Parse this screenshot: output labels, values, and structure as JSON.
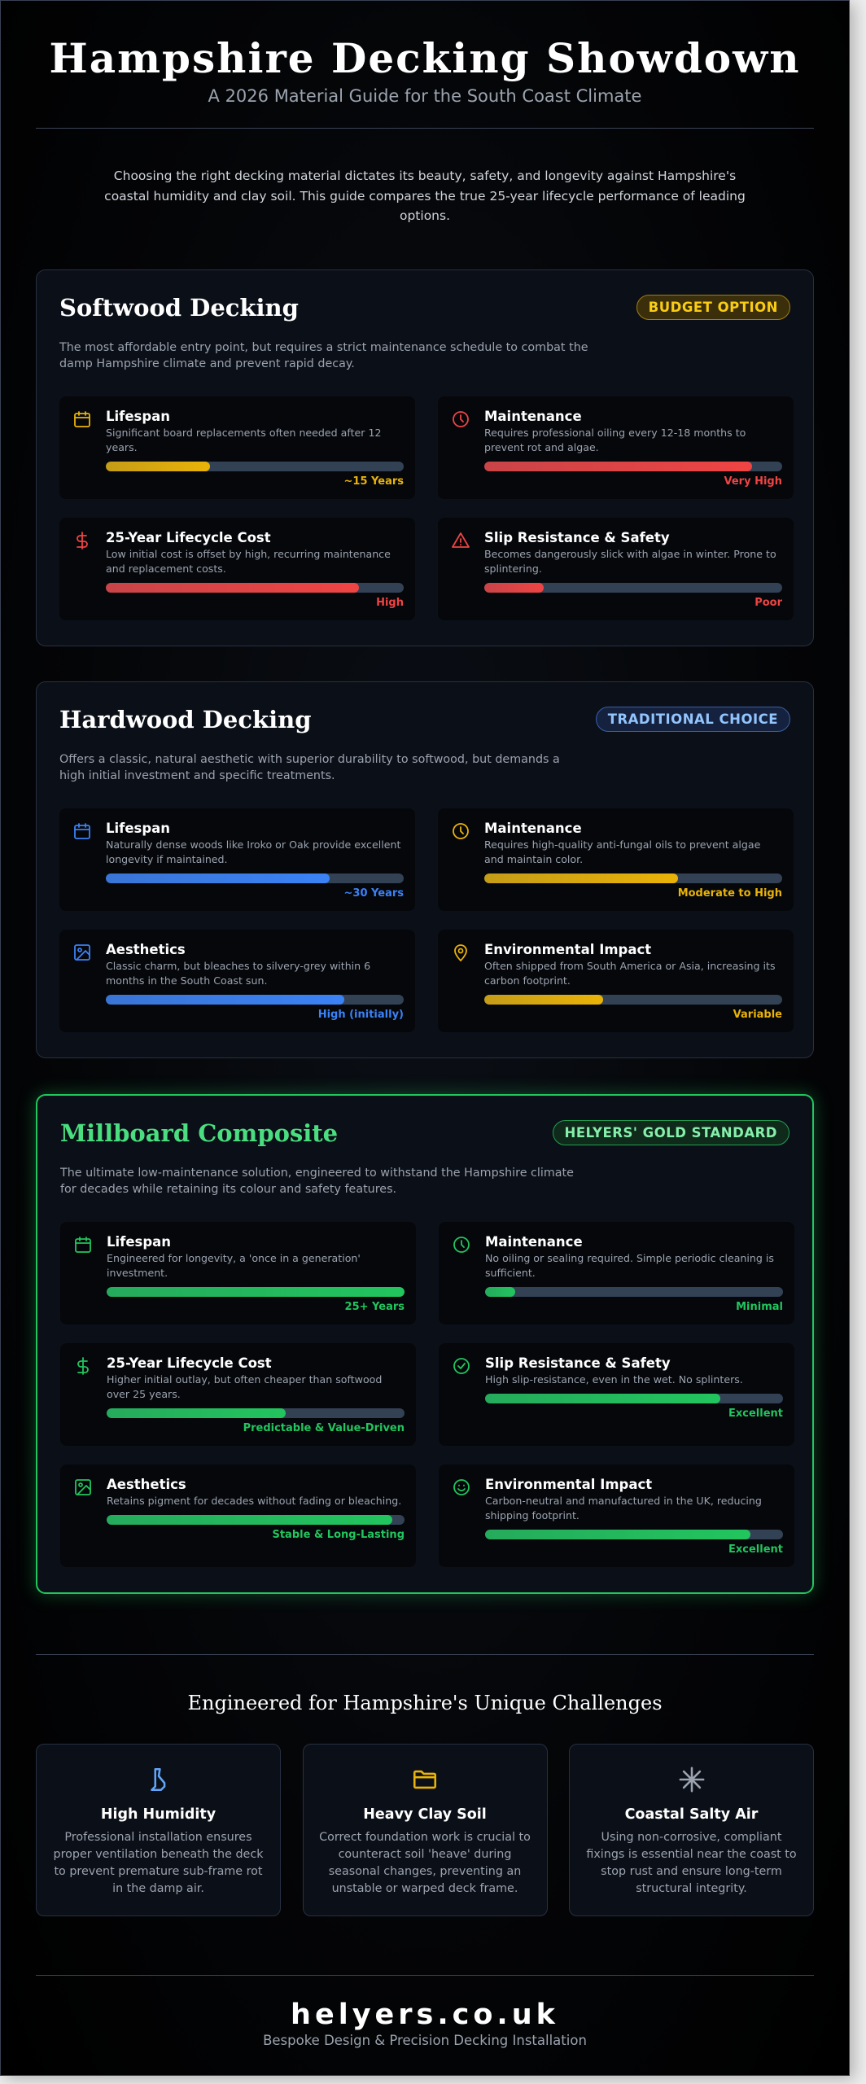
{
  "header": {
    "title": "Hampshire Decking Showdown",
    "subtitle": "A 2026 Material Guide for the South Coast Climate"
  },
  "intro": "Choosing the right decking material dictates its beauty, safety, and longevity against Hampshire's coastal humidity and clay soil. This guide compares the true 25-year lifecycle performance of leading options.",
  "cards": [
    {
      "title": "Softwood Decking",
      "badge": "BUDGET OPTION",
      "description": "The most affordable entry point, but requires a strict maintenance schedule to combat the damp Hampshire climate and prevent rapid decay.",
      "metrics": [
        {
          "title": "Lifespan",
          "description": "Significant board replacements often needed after 12 years.",
          "level": 35,
          "rating": "~15 Years",
          "color": "#eab308"
        },
        {
          "title": "Maintenance",
          "description": "Requires professional oiling every 12-18 months to prevent rot and algae.",
          "level": 90,
          "rating": "Very High",
          "color": "#ef4444"
        },
        {
          "title": "25-Year Lifecycle Cost",
          "description": "Low initial cost is offset by high, recurring maintenance and replacement costs.",
          "level": 85,
          "rating": "High",
          "color": "#ef4444"
        },
        {
          "title": "Slip Resistance & Safety",
          "description": "Becomes dangerously slick with algae in winter. Prone to splintering.",
          "level": 20,
          "rating": "Poor",
          "color": "#ef4444"
        }
      ]
    },
    {
      "title": "Hardwood Decking",
      "badge": "TRADITIONAL CHOICE",
      "description": "Offers a classic, natural aesthetic with superior durability to softwood, but demands a high initial investment and specific treatments.",
      "metrics": [
        {
          "title": "Lifespan",
          "description": "Naturally dense woods like Iroko or Oak provide excellent longevity if maintained.",
          "level": 75,
          "rating": "~30 Years",
          "color": "#3b82f6"
        },
        {
          "title": "Maintenance",
          "description": "Requires high-quality anti-fungal oils to prevent algae and maintain color.",
          "level": 65,
          "rating": "Moderate to High",
          "color": "#eab308"
        },
        {
          "title": "Aesthetics",
          "description": "Classic charm, but bleaches to silvery-grey within 6 months in the South Coast sun.",
          "level": 80,
          "rating": "High (initially)",
          "color": "#3b82f6"
        },
        {
          "title": "Environmental Impact",
          "description": "Often shipped from South America or Asia, increasing its carbon footprint.",
          "level": 40,
          "rating": "Variable",
          "color": "#eab308"
        }
      ]
    },
    {
      "title": "Millboard Composite",
      "badge": "HELYERS' GOLD STANDARD",
      "description": "The ultimate low-maintenance solution, engineered to withstand the Hampshire climate for decades while retaining its colour and safety features.",
      "metrics": [
        {
          "title": "Lifespan",
          "description": "Engineered for longevity, a 'once in a generation' investment.",
          "level": 100,
          "rating": "25+ Years",
          "color": "#22c55e"
        },
        {
          "title": "Maintenance",
          "description": "No oiling or sealing required. Simple periodic cleaning is sufficient.",
          "level": 10,
          "rating": "Minimal",
          "color": "#22c55e"
        },
        {
          "title": "25-Year Lifecycle Cost",
          "description": "Higher initial outlay, but often cheaper than softwood over 25 years.",
          "level": 60,
          "rating": "Predictable & Value-Driven",
          "color": "#22c55e"
        },
        {
          "title": "Slip Resistance & Safety",
          "description": "High slip-resistance, even in the wet. No splinters.",
          "level": 79,
          "rating": "Excellent",
          "color": "#22c55e"
        },
        {
          "title": "Aesthetics",
          "description": "Retains pigment for decades without fading or bleaching.",
          "level": 96,
          "rating": "Stable & Long-Lasting",
          "color": "#22c55e"
        },
        {
          "title": "Environmental Impact",
          "description": "Carbon-neutral and manufactured in the UK, reducing shipping footprint.",
          "level": 89,
          "rating": "Excellent",
          "color": "#22c55e"
        }
      ]
    }
  ],
  "challenges": {
    "heading": "Engineered for Hampshire's Unique Challenges",
    "items": [
      {
        "title": "High Humidity",
        "text": "Professional installation ensures proper ventilation beneath the deck to prevent premature sub-frame rot in the damp air."
      },
      {
        "title": "Heavy Clay Soil",
        "text": "Correct foundation work is crucial to counteract soil 'heave' during seasonal changes, preventing an unstable or warped deck frame."
      },
      {
        "title": "Coastal Salty Air",
        "text": "Using non-corrosive, compliant fixings is essential near the coast to stop rust and ensure long-term structural integrity."
      }
    ]
  },
  "footer": {
    "site": "helyers.co.uk",
    "tagline": "Bespoke Design & Precision Decking Installation"
  }
}
